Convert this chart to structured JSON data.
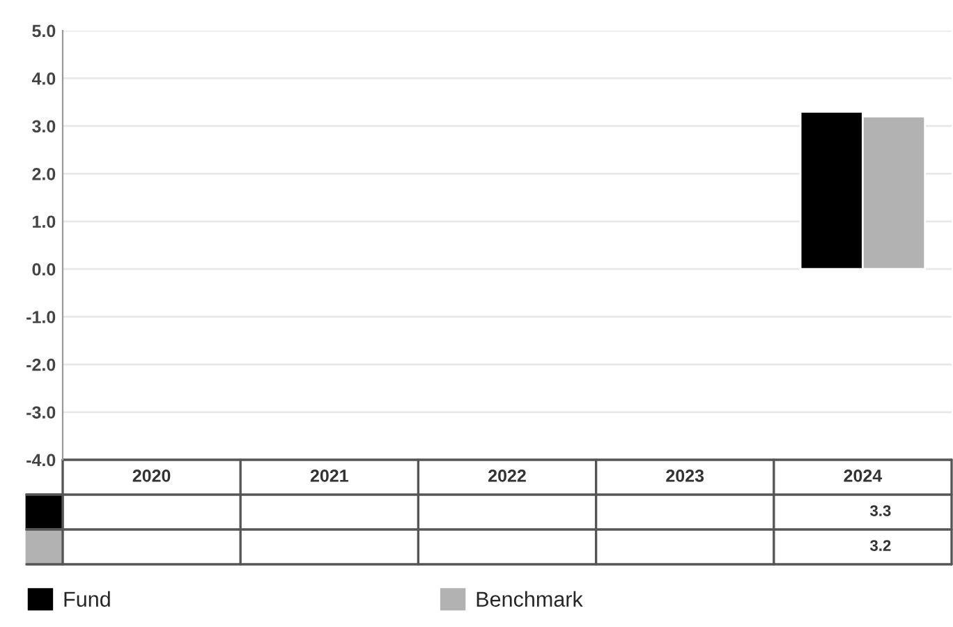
{
  "chart_data": {
    "type": "bar",
    "categories": [
      "2020",
      "2021",
      "2022",
      "2023",
      "2024"
    ],
    "series": [
      {
        "name": "Fund",
        "color": "#000000",
        "values": [
          null,
          null,
          null,
          null,
          3.3
        ]
      },
      {
        "name": "Benchmark",
        "color": "#b2b2b2",
        "values": [
          null,
          null,
          null,
          null,
          3.2
        ]
      }
    ],
    "ylim": [
      -4.0,
      5.0
    ],
    "yticks": [
      {
        "value": -4,
        "label": "-4.0"
      },
      {
        "value": -3,
        "label": "-3.0"
      },
      {
        "value": -2,
        "label": "-2.0"
      },
      {
        "value": -1,
        "label": "-1.0"
      },
      {
        "value": 0,
        "label": "0.0"
      },
      {
        "value": 1,
        "label": "1.0"
      },
      {
        "value": 2,
        "label": "2.0"
      },
      {
        "value": 3,
        "label": "3.0"
      },
      {
        "value": 4,
        "label": "4.0"
      },
      {
        "value": 5,
        "label": "5.0"
      }
    ],
    "annotations": [
      "3.3",
      "3.2"
    ],
    "grid": "y",
    "legend": "bottom"
  }
}
